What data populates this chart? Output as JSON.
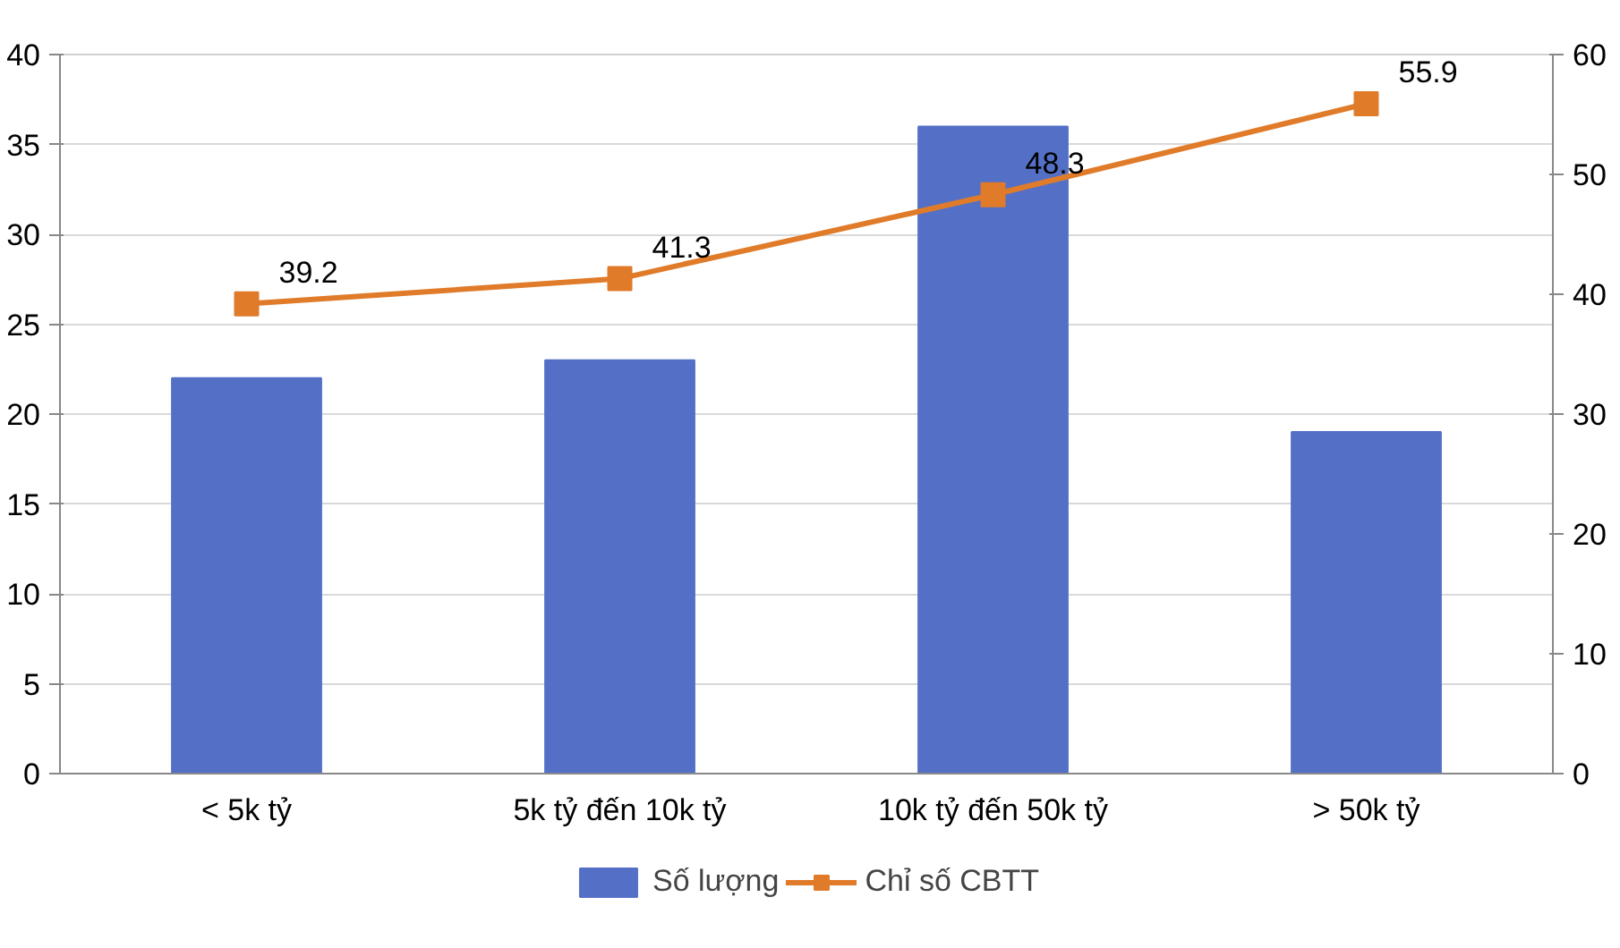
{
  "chart_data": {
    "type": "bar",
    "categories": [
      "< 5k tỷ",
      "5k tỷ đến 10k tỷ",
      "10k tỷ đến 50k tỷ",
      "> 50k tỷ"
    ],
    "series": [
      {
        "name": "Số lượng",
        "color": "#5470c6",
        "values": [
          22,
          23,
          36,
          19
        ]
      },
      {
        "name": "Chỉ số CBTT",
        "color": "#e07b2a",
        "values": [
          39.2,
          41.3,
          48.3,
          55.9
        ],
        "type": "line",
        "axis": "y2",
        "marker": "square",
        "value_labels": [
          "39.2",
          "41.3",
          "48.3",
          "55.9"
        ]
      }
    ],
    "ylim": [
      0,
      40
    ],
    "yticks": [
      0,
      5,
      10,
      15,
      20,
      25,
      30,
      35,
      40
    ],
    "y2lim": [
      0,
      60
    ],
    "y2ticks": [
      0,
      10,
      20,
      30,
      40,
      50,
      60
    ],
    "grid": "y",
    "legend": "bottom"
  }
}
